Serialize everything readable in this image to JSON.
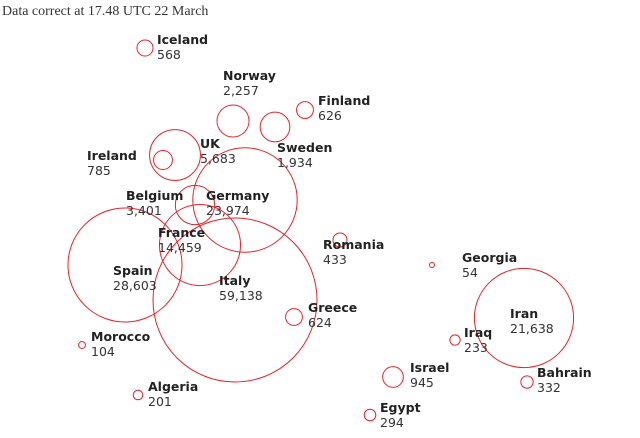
{
  "chart_data": {
    "type": "bubble-map",
    "subtitle": "Data correct at 17.48 UTC 22 March",
    "color": "#e3242b",
    "categories": [
      "Iceland",
      "Norway",
      "Finland",
      "UK",
      "Sweden",
      "Ireland",
      "Belgium",
      "Germany",
      "France",
      "Spain",
      "Italy",
      "Romania",
      "Greece",
      "Morocco",
      "Algeria",
      "Georgia",
      "Iran",
      "Iraq",
      "Israel",
      "Bahrain",
      "Egypt"
    ],
    "values": [
      568,
      2257,
      626,
      5683,
      1934,
      785,
      3401,
      23974,
      14459,
      28603,
      59138,
      433,
      624,
      104,
      201,
      54,
      21638,
      233,
      945,
      332,
      294
    ],
    "value_labels": [
      "568",
      "2,257",
      "626",
      "5,683",
      "1,934",
      "785",
      "3,401",
      "23,974",
      "14,459",
      "28,603",
      "59,138",
      "433",
      "624",
      "104",
      "201",
      "54",
      "21,638",
      "233",
      "945",
      "332",
      "294"
    ]
  }
}
